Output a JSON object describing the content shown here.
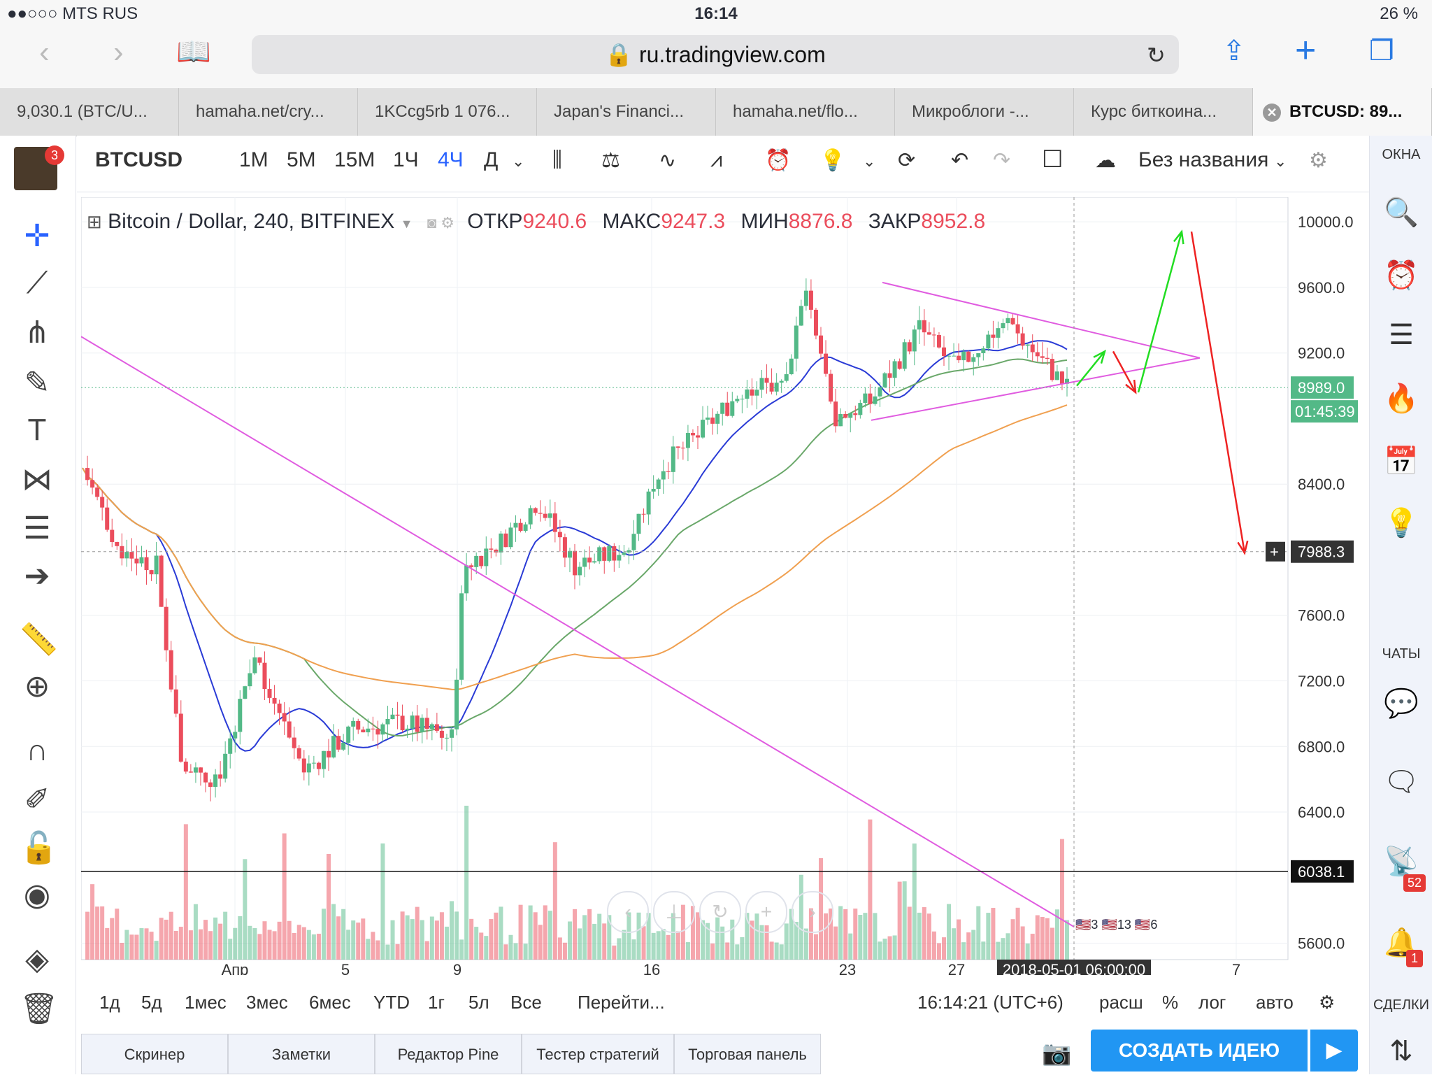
{
  "status_bar": {
    "carrier": "●●○○○ MTS RUS",
    "time": "16:14",
    "battery": "26 %"
  },
  "browser": {
    "url": "ru.tradingview.com"
  },
  "tabs": [
    "9,030.1 (BTC/U...",
    "hamaha.net/cry...",
    "1KCcg5rb 1 076...",
    "Japan's Financi...",
    "hamaha.net/flo...",
    "Микроблоги -...",
    "Курс биткоина...",
    "BTCUSD: 89..."
  ],
  "toolbar": {
    "symbol": "BTCUSD",
    "intervals": [
      "1М",
      "5М",
      "15М",
      "1Ч",
      "4Ч",
      "Д"
    ],
    "active_interval": "4Ч",
    "layout_name": "Без названия"
  },
  "legend": {
    "title": "Bitcoin / Dollar, 240, BITFINEX",
    "open_label": "ОТКР",
    "open": "9240.6",
    "high_label": "МАКС",
    "high": "9247.3",
    "low_label": "МИН",
    "low": "8876.8",
    "close_label": "ЗАКР",
    "close": "8952.8"
  },
  "chart_data": {
    "type": "line",
    "x_ticks": [
      "Апр",
      "5",
      "9",
      "16",
      "23",
      "27",
      "7"
    ],
    "crosshair_date": "2018-05-01 06:00:00",
    "y_ticks": [
      "10000.0",
      "9600.0",
      "9200.0",
      "8400.0",
      "7600.0",
      "7200.0",
      "6800.0",
      "6400.0",
      "5600.0"
    ],
    "ylim": [
      5500,
      10150
    ],
    "last_price": "8989.0",
    "countdown": "01:45:39",
    "crosshair_price": "7988.3",
    "hline_price": "6038.1",
    "colors": {
      "up": "#53b987",
      "down": "#eb4d5c",
      "ma_blue": "#2a3bd6",
      "ma_green": "#6aa86a",
      "ma_orange": "#f0a050",
      "trend": "#e05ce0",
      "arrow_up": "#22dd22",
      "arrow_down": "#ee2222"
    },
    "event_counts": [
      "3",
      "13",
      "6"
    ]
  },
  "range_bar": {
    "ranges": [
      "1д",
      "5д",
      "1мес",
      "3мес",
      "6мес",
      "YTD",
      "1г",
      "5л",
      "Все"
    ],
    "goto": "Перейти...",
    "time": "16:14:21 (UTC+6)",
    "options": [
      "расш",
      "%",
      "лог",
      "авто"
    ]
  },
  "panels": [
    "Скринер",
    "Заметки",
    "Редактор Pine",
    "Тестер стратегий",
    "Торговая панель"
  ],
  "create_idea": "СОЗДАТЬ ИДЕЮ",
  "right_sidebar": {
    "windows": "ОКНА",
    "chats": "ЧАТЫ",
    "deals": "СДЕЛКИ",
    "badge_ideas": "52",
    "badge_alerts": "1"
  },
  "avatar_badge": "3"
}
